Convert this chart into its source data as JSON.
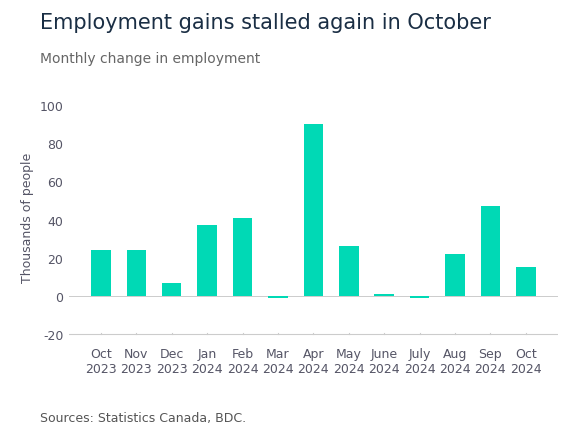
{
  "title": "Employment gains stalled again in October",
  "subtitle": "Monthly change in employment",
  "ylabel": "Thousands of people",
  "source": "Sources: Statistics Canada, BDC.",
  "categories": [
    "Oct\n2023",
    "Nov\n2023",
    "Dec\n2023",
    "Jan\n2024",
    "Feb\n2024",
    "Mar\n2024",
    "Apr\n2024",
    "May\n2024",
    "June\n2024",
    "July\n2024",
    "Aug\n2024",
    "Sep\n2024",
    "Oct\n2024"
  ],
  "values": [
    24,
    24,
    7,
    37,
    41,
    -1,
    90,
    26,
    1,
    -1,
    22,
    47,
    15
  ],
  "bar_color": "#00D9B5",
  "ylim": [
    -25,
    108
  ],
  "yticks": [
    -20,
    0,
    20,
    40,
    60,
    80,
    100
  ],
  "background_color": "#ffffff",
  "title_color": "#1a2e44",
  "subtitle_color": "#666666",
  "axis_color": "#cccccc",
  "tick_color": "#555566",
  "source_color": "#555555",
  "title_fontsize": 15,
  "subtitle_fontsize": 10,
  "ylabel_fontsize": 9,
  "tick_fontsize": 9,
  "source_fontsize": 9
}
